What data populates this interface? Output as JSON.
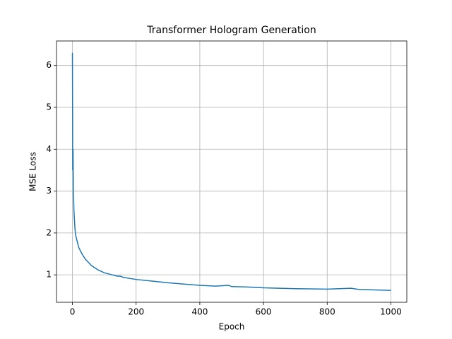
{
  "chart_data": {
    "type": "line",
    "title": "Transformer Hologram Generation",
    "xlabel": "Epoch",
    "ylabel": "MSE Loss",
    "x": [
      0,
      1,
      2,
      3,
      5,
      8,
      10,
      15,
      20,
      30,
      40,
      50,
      60,
      80,
      100,
      120,
      140,
      150,
      160,
      200,
      250,
      300,
      350,
      400,
      450,
      490,
      500,
      550,
      600,
      700,
      800,
      875,
      900,
      1000
    ],
    "series": [
      {
        "name": "MSE Loss",
        "color": "#1f77b4",
        "values": [
          6.3,
          3.5,
          4.0,
          3.0,
          2.5,
          2.1,
          1.95,
          1.8,
          1.65,
          1.5,
          1.38,
          1.3,
          1.22,
          1.12,
          1.05,
          1.01,
          0.97,
          0.97,
          0.94,
          0.89,
          0.85,
          0.81,
          0.78,
          0.75,
          0.73,
          0.75,
          0.72,
          0.71,
          0.69,
          0.67,
          0.66,
          0.68,
          0.65,
          0.63
        ]
      }
    ],
    "xlim": [
      -50,
      1050
    ],
    "ylim": [
      0.345,
      6.585
    ],
    "xticks": [
      0,
      200,
      400,
      600,
      800,
      1000
    ],
    "yticks": [
      1,
      2,
      3,
      4,
      5,
      6
    ],
    "grid": true
  }
}
